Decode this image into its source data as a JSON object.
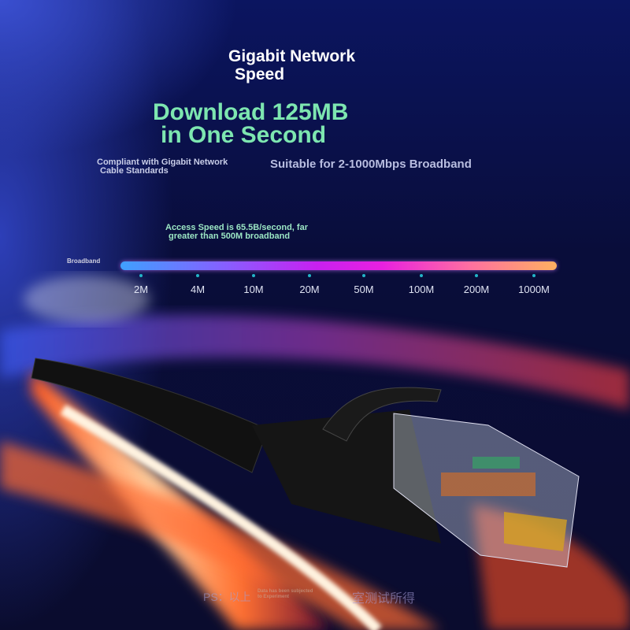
{
  "header": {
    "title_line1": "Gigabit Network",
    "title_line2": "Speed"
  },
  "headline": {
    "line1": "Download 125MB",
    "line2": "in One Second"
  },
  "features": {
    "compliant_line1": "Compliant with Gigabit Network",
    "compliant_line2": "Cable Standards",
    "suitable": "Suitable for 2-1000Mbps Broadband"
  },
  "access": {
    "line1": "Access Speed is 65.5B/second, far",
    "line2": "greater than 500M broadband"
  },
  "scale": {
    "label": "Broadband",
    "ticks": [
      "2M",
      "4M",
      "10M",
      "20M",
      "50M",
      "100M",
      "200M",
      "1000M"
    ],
    "gradient": [
      "#3fa0ff",
      "#c820f0",
      "#ffb060"
    ]
  },
  "footer": {
    "prefix": "PS：以上",
    "note_line1": "Data has been subjected",
    "note_line2": "to Experiment",
    "suffix": "室测试所得"
  },
  "colors": {
    "headline": "#7de6b0",
    "background": "#0a0c2e"
  }
}
